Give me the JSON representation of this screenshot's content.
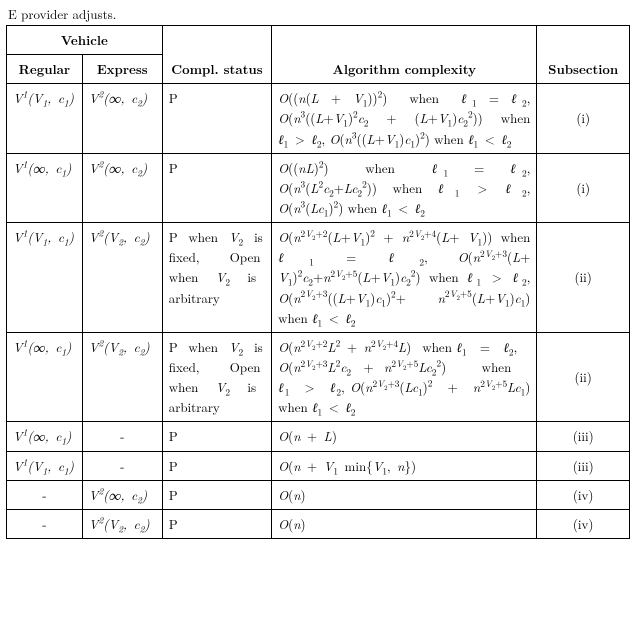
{
  "caption_fragment": "E provider adjusts.",
  "headers": {
    "vehicle": "Vehicle",
    "regular": "Regular",
    "express": "Express",
    "status": "Compl. status",
    "algo": "Algorithm complexity",
    "sub": "Subsection"
  },
  "rows": [
    {
      "regular": "V^1(V_1, c_1)",
      "express": "V^2(\\infty, c_2)",
      "status": "P",
      "algo": "O((n(L+V_1))^2) when \\ell_1 = \\ell_2, O(n^3((L+V_1)^2 c_2 + (L+V_1) c_2^2)) when \\ell_1 > \\ell_2, O(n^3((L+V_1)c_1)^2) when \\ell_1 < \\ell_2",
      "sub": "(i)"
    },
    {
      "regular": "V^1(\\infty, c_1)",
      "express": "V^2(\\infty, c_2)",
      "status": "P",
      "algo": "O((nL)^2) when \\ell_1 = \\ell_2, O(n^3(L^2 c_2 + L c_2^2)) when \\ell_1 > \\ell_2, O(n^3(L c_1)^2) when \\ell_1 < \\ell_2",
      "sub": "(i)"
    },
    {
      "regular": "V^1(V_1, c_1)",
      "express": "V^2(V_2, c_2)",
      "status": "P when V_2 is fixed, Open when V_2 is arbitrary",
      "algo": "O(n^{2V_2+2}(L+V_1)^2 + n^{2V_2+4}(L+V_1)) when \\ell_1 = \\ell_2, O(n^{2V_2+3}(L+V_1)^2 c_2 + n^{2V_2+5}(L+V_1) c_2^2) when \\ell_1 > \\ell_2, O(n^{2V_2+3}((L+V_1)c_1)^2 + n^{2V_2+5}(L+V_1)c_1) when \\ell_1 < \\ell_2",
      "sub": "(ii)"
    },
    {
      "regular": "V^1(\\infty, c_1)",
      "express": "V^2(V_2, c_2)",
      "status": "P when V_2 is fixed, Open when V_2 is arbitrary",
      "algo": "O(n^{2V_2+2} L^2 + n^{2V_2+4} L) when \\ell_1 = \\ell_2, O(n^{2V_2+3} L^2 c_2 + n^{2V_2+5} L c_2^2) when \\ell_1 > \\ell_2, O(n^{2V_2+3} (L c_1)^2 + n^{2V_2+5} L c_1) when \\ell_1 < \\ell_2",
      "sub": "(ii)"
    },
    {
      "regular": "V^1(\\infty, c_1)",
      "express": "-",
      "status": "P",
      "algo": "O(n + L)",
      "sub": "(iii)"
    },
    {
      "regular": "V^1(V_1, c_1)",
      "express": "-",
      "status": "P",
      "algo": "O(n + V_1 min{V_1, n})",
      "sub": "(iii)"
    },
    {
      "regular": "-",
      "express": "V^2(\\infty, c_2)",
      "status": "P",
      "algo": "O(n)",
      "sub": "(iv)"
    },
    {
      "regular": "-",
      "express": "V^2(V_2, c_2)",
      "status": "P",
      "algo": "O(n)",
      "sub": "(iv)"
    }
  ]
}
